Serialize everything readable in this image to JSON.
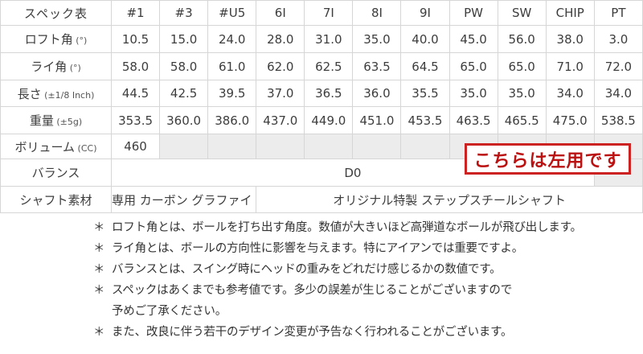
{
  "table": {
    "title": "スペック表",
    "columns": [
      {
        "label": "#1",
        "muted": false
      },
      {
        "label": "#3",
        "muted": false
      },
      {
        "label": "#U5",
        "muted": false
      },
      {
        "label": "6I",
        "muted": false
      },
      {
        "label": "7I",
        "muted": false
      },
      {
        "label": "8I",
        "muted": false
      },
      {
        "label": "9I",
        "muted": false
      },
      {
        "label": "PW",
        "muted": false
      },
      {
        "label": "SW",
        "muted": false
      },
      {
        "label": "CHIP",
        "muted": true
      },
      {
        "label": "PT",
        "muted": false
      }
    ],
    "spec_rows": [
      {
        "label": "ロフト角",
        "unit": "(°)",
        "values": [
          "10.5",
          "15.0",
          "24.0",
          "28.0",
          "31.0",
          "35.0",
          "40.0",
          "45.0",
          "56.0",
          "38.0",
          "3.0"
        ]
      },
      {
        "label": "ライ角",
        "unit": "(°)",
        "values": [
          "58.0",
          "58.0",
          "61.0",
          "62.0",
          "62.5",
          "63.5",
          "64.5",
          "65.0",
          "65.0",
          "71.0",
          "72.0"
        ]
      },
      {
        "label": "長さ",
        "unit": "(±1/8 Inch)",
        "values": [
          "44.5",
          "42.5",
          "39.5",
          "37.0",
          "36.5",
          "36.0",
          "35.5",
          "35.0",
          "35.0",
          "34.0",
          "34.0"
        ]
      },
      {
        "label": "重量",
        "unit": "(±5g)",
        "values": [
          "353.5",
          "360.0",
          "386.0",
          "437.0",
          "449.0",
          "451.0",
          "453.5",
          "463.5",
          "465.5",
          "475.0",
          "538.5"
        ]
      }
    ],
    "volume_row": {
      "label": "ボリューム",
      "unit": "(CC)",
      "value": "460",
      "empty_cells": 10
    },
    "balance_row": {
      "label": "バランス",
      "value": "D0",
      "span": 10,
      "trailing_empty_cells": 1
    },
    "shaft_row": {
      "label": "シャフト素材",
      "cells": [
        {
          "text": "専用 カーボン グラファイト",
          "span": 3
        },
        {
          "text": "オリジナル特製 ステップスチールシャフト",
          "span": 8
        }
      ]
    }
  },
  "overlay_badge": {
    "text": "こちらは左用です"
  },
  "notes": {
    "marker": "＊",
    "items": [
      {
        "lines": [
          "ロフト角とは、ボールを打ち出す角度。数値が大きいほど高弾道なボールが飛び出します。"
        ]
      },
      {
        "lines": [
          "ライ角とは、ボールの方向性に影響を与えます。特にアイアンでは重要ですよ。"
        ]
      },
      {
        "lines": [
          "バランスとは、スイング時にヘッドの重みをどれだけ感じるかの数値です。"
        ]
      },
      {
        "lines": [
          "スペックはあくまでも参考値です。多少の誤差が生じることがございますので",
          "予めご了承ください。"
        ]
      },
      {
        "lines": [
          "また、改良に伴う若干のデザイン変更が予告なく行われることがございます。"
        ]
      }
    ]
  },
  "colors": {
    "accent_red": "#cc1111",
    "muted_text": "#aaaaaa",
    "grid_border": "#d6d6d6",
    "empty_cell_bg": "#ececec"
  }
}
